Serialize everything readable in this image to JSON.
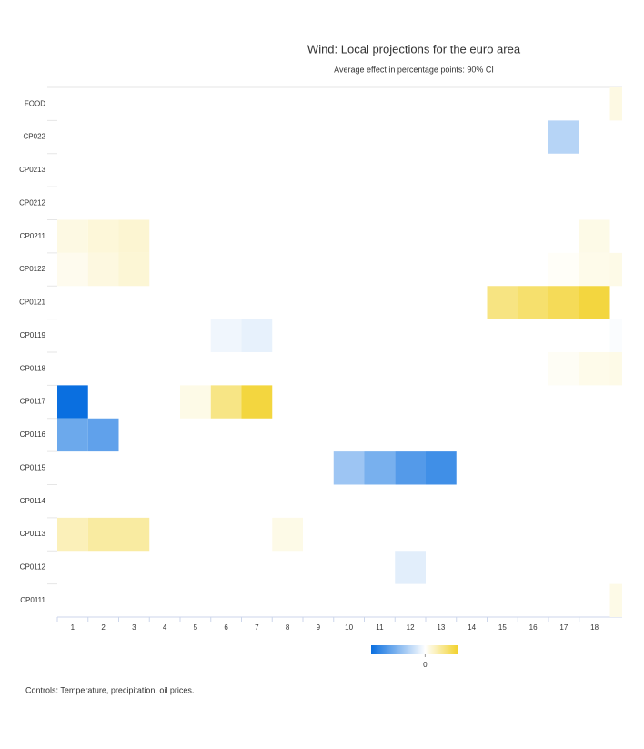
{
  "chart_data": {
    "type": "heatmap",
    "title": "Wind: Local projections for the euro area",
    "subtitle": "Average effect in percentage points: 90% CI",
    "note": "Controls: Temperature, precipitation, oil prices.",
    "categories": [
      "FOOD",
      "CP022",
      "CP0213",
      "CP0212",
      "CP0211",
      "CP0122",
      "CP0121",
      "CP0119",
      "CP0118",
      "CP0117",
      "CP0116",
      "CP0115",
      "CP0114",
      "CP0113",
      "CP0112",
      "CP0111"
    ],
    "x": [
      1,
      2,
      3,
      4,
      5,
      6,
      7,
      8,
      9,
      10,
      11,
      12,
      13,
      14,
      15,
      16,
      17,
      18,
      19
    ],
    "xlim": [
      0.5,
      18.9
    ],
    "xticks": [
      1,
      2,
      3,
      4,
      5,
      6,
      7,
      8,
      9,
      10,
      11,
      12,
      13,
      14,
      15,
      16,
      17,
      18
    ],
    "zlim": [
      -1,
      0.6
    ],
    "zticks": [
      0
    ],
    "colorscale": [
      "#0a6fe0",
      "#ffffff",
      "#f2d22e"
    ],
    "values": [
      [
        null,
        null,
        null,
        null,
        null,
        null,
        null,
        null,
        null,
        null,
        null,
        null,
        null,
        null,
        null,
        null,
        null,
        null,
        0.08
      ],
      [
        null,
        null,
        null,
        null,
        null,
        null,
        null,
        null,
        null,
        null,
        null,
        null,
        null,
        null,
        null,
        null,
        -0.3,
        null,
        null
      ],
      [
        null,
        null,
        null,
        null,
        null,
        null,
        null,
        null,
        null,
        null,
        null,
        null,
        null,
        null,
        null,
        null,
        null,
        null,
        null
      ],
      [
        null,
        null,
        null,
        null,
        null,
        null,
        null,
        null,
        null,
        null,
        null,
        null,
        null,
        null,
        null,
        null,
        null,
        null,
        null
      ],
      [
        0.08,
        0.11,
        0.13,
        null,
        null,
        null,
        null,
        null,
        null,
        null,
        null,
        null,
        null,
        null,
        null,
        null,
        null,
        0.07,
        null
      ],
      [
        0.05,
        0.09,
        0.12,
        null,
        null,
        null,
        null,
        null,
        null,
        null,
        null,
        null,
        null,
        null,
        null,
        null,
        0.02,
        0.06,
        0.07
      ],
      [
        null,
        null,
        null,
        null,
        null,
        null,
        null,
        null,
        null,
        null,
        null,
        null,
        null,
        null,
        0.36,
        0.42,
        0.48,
        0.55,
        null
      ],
      [
        null,
        null,
        null,
        null,
        null,
        -0.06,
        -0.1,
        null,
        null,
        null,
        null,
        null,
        null,
        null,
        null,
        null,
        null,
        null,
        -0.02
      ],
      [
        null,
        null,
        null,
        null,
        null,
        null,
        null,
        null,
        null,
        null,
        null,
        null,
        null,
        null,
        null,
        null,
        0.03,
        0.06,
        0.07
      ],
      [
        -1,
        null,
        null,
        null,
        0.07,
        0.35,
        0.55,
        null,
        null,
        null,
        null,
        null,
        null,
        null,
        null,
        null,
        null,
        null,
        null
      ],
      [
        -0.6,
        -0.65,
        null,
        null,
        null,
        null,
        null,
        null,
        null,
        null,
        null,
        null,
        null,
        null,
        null,
        null,
        null,
        null,
        null
      ],
      [
        null,
        null,
        null,
        null,
        null,
        null,
        null,
        null,
        null,
        -0.4,
        -0.55,
        -0.7,
        -0.78,
        null,
        null,
        null,
        null,
        null,
        null
      ],
      [
        null,
        null,
        null,
        null,
        null,
        null,
        null,
        null,
        null,
        null,
        null,
        null,
        null,
        null,
        null,
        null,
        null,
        null,
        null
      ],
      [
        0.2,
        0.27,
        0.27,
        null,
        null,
        null,
        null,
        0.07,
        null,
        null,
        null,
        null,
        null,
        null,
        null,
        null,
        null,
        null,
        null
      ],
      [
        null,
        null,
        null,
        null,
        null,
        null,
        null,
        null,
        null,
        null,
        null,
        -0.12,
        null,
        null,
        null,
        null,
        null,
        null,
        null
      ],
      [
        null,
        null,
        null,
        null,
        null,
        null,
        null,
        null,
        null,
        null,
        null,
        null,
        null,
        null,
        null,
        null,
        null,
        null,
        0.07
      ]
    ]
  }
}
